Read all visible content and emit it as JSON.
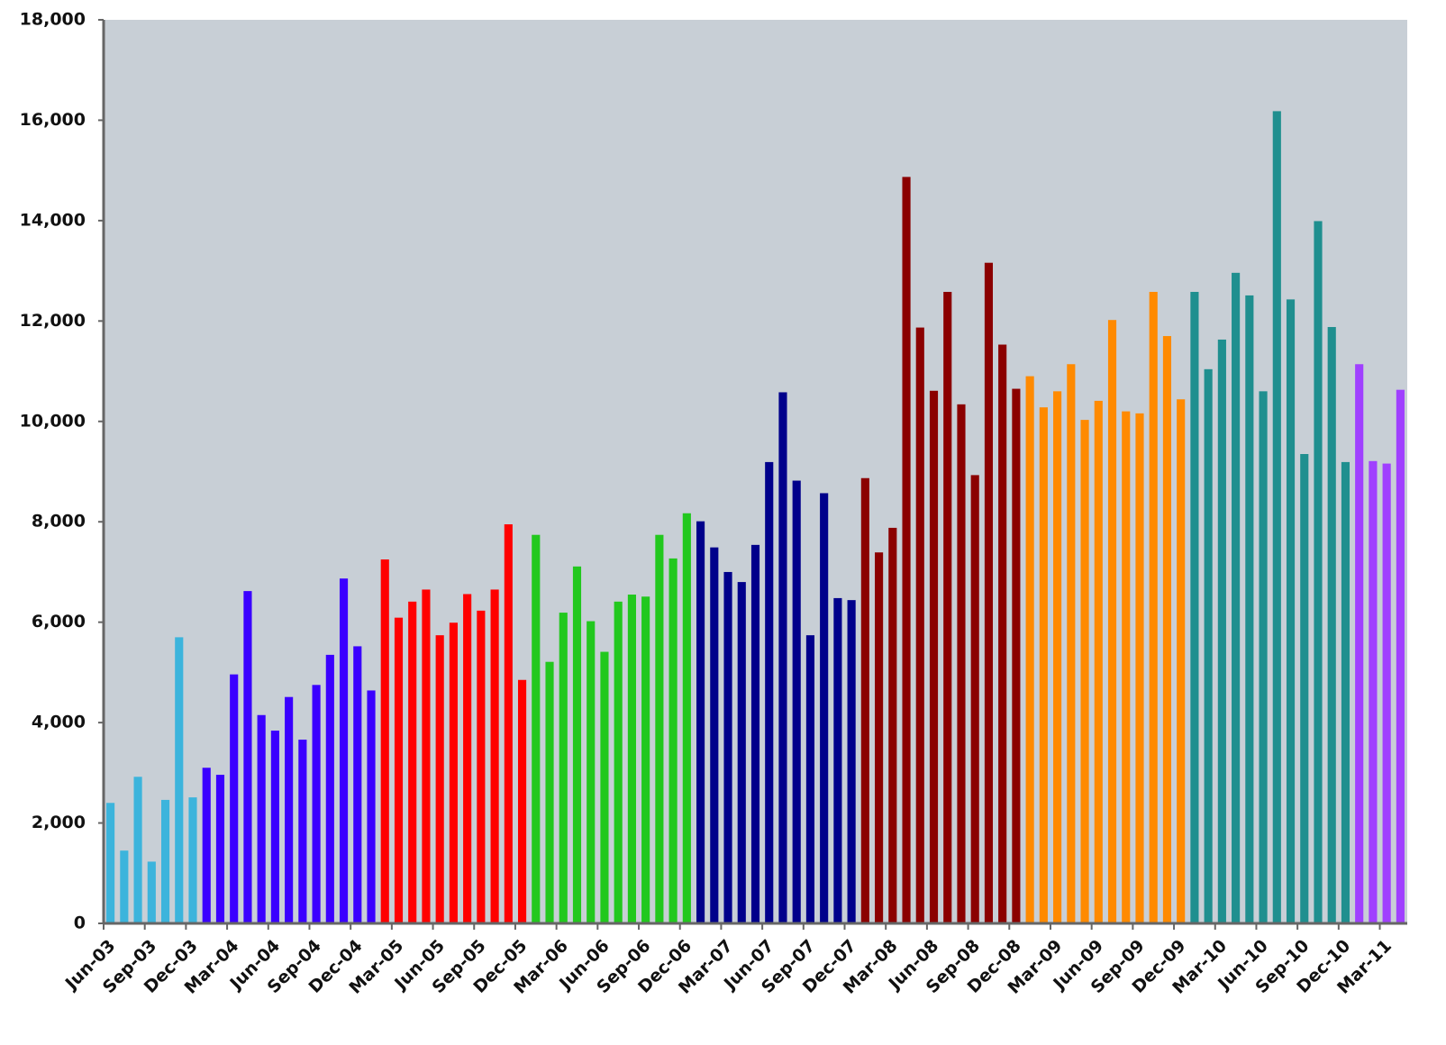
{
  "chart_data": {
    "type": "bar",
    "categories": [
      "Jun-03",
      null,
      null,
      "Sep-03",
      null,
      null,
      "Dec-03",
      null,
      null,
      "Mar-04",
      null,
      null,
      "Jun-04",
      null,
      null,
      "Sep-04",
      null,
      null,
      "Dec-04",
      null,
      null,
      "Mar-05",
      null,
      null,
      "Jun-05",
      null,
      null,
      "Sep-05",
      null,
      null,
      "Dec-05",
      null,
      null,
      "Mar-06",
      null,
      null,
      "Jun-06",
      null,
      null,
      "Sep-06",
      null,
      null,
      "Dec-06",
      null,
      null,
      "Mar-07",
      null,
      null,
      "Jun-07",
      null,
      null,
      "Sep-07",
      null,
      null,
      "Dec-07",
      null,
      null,
      "Mar-08",
      null,
      null,
      "Jun-08",
      null,
      null,
      "Sep-08",
      null,
      null,
      "Dec-08",
      null,
      null,
      "Mar-09",
      null,
      null,
      "Jun-09",
      null,
      null,
      "Sep-09",
      null,
      null,
      "Dec-09",
      null,
      null,
      "Mar-10",
      null,
      null,
      "Jun-10",
      null,
      null,
      "Sep-10",
      null,
      null,
      "Dec-10",
      null,
      null,
      "Mar-11",
      null
    ],
    "values": [
      2400,
      1450,
      2920,
      1230,
      2460,
      5700,
      2510,
      3100,
      2960,
      4960,
      6620,
      4150,
      3840,
      4510,
      3660,
      4750,
      5350,
      6870,
      5520,
      4640,
      7250,
      6090,
      6410,
      6650,
      5740,
      5990,
      6560,
      6230,
      6650,
      7950,
      4850,
      7740,
      5210,
      6190,
      7110,
      6020,
      5410,
      6410,
      6550,
      6510,
      7740,
      7270,
      8170,
      8010,
      7490,
      7000,
      6800,
      7540,
      9190,
      10580,
      8820,
      5740,
      8570,
      6480,
      6440,
      8870,
      7390,
      7880,
      14870,
      11870,
      10610,
      12580,
      10340,
      8930,
      13160,
      11530,
      10650,
      10900,
      10280,
      10600,
      11140,
      10030,
      10410,
      12020,
      10200,
      10160,
      12580,
      11700,
      10440,
      12580,
      11040,
      11630,
      12960,
      12510,
      10600,
      16180,
      12430,
      9350,
      13990,
      11880,
      9190,
      11140,
      9210,
      9160,
      10630
    ],
    "colors": [
      "#3cb4dc",
      "#3cb4dc",
      "#3cb4dc",
      "#3cb4dc",
      "#3cb4dc",
      "#3cb4dc",
      "#3cb4dc",
      "#3a00ff",
      "#3a00ff",
      "#3a00ff",
      "#3a00ff",
      "#3a00ff",
      "#3a00ff",
      "#3a00ff",
      "#3a00ff",
      "#3a00ff",
      "#3a00ff",
      "#3a00ff",
      "#3a00ff",
      "#3a00ff",
      "#ff0000",
      "#ff0000",
      "#ff0000",
      "#ff0000",
      "#ff0000",
      "#ff0000",
      "#ff0000",
      "#ff0000",
      "#ff0000",
      "#ff0000",
      "#ff0000",
      "#22c81e",
      "#22c81e",
      "#22c81e",
      "#22c81e",
      "#22c81e",
      "#22c81e",
      "#22c81e",
      "#22c81e",
      "#22c81e",
      "#22c81e",
      "#22c81e",
      "#22c81e",
      "#00008b",
      "#00008b",
      "#00008b",
      "#00008b",
      "#00008b",
      "#00008b",
      "#00008b",
      "#00008b",
      "#00008b",
      "#00008b",
      "#00008b",
      "#00008b",
      "#8b0000",
      "#8b0000",
      "#8b0000",
      "#8b0000",
      "#8b0000",
      "#8b0000",
      "#8b0000",
      "#8b0000",
      "#8b0000",
      "#8b0000",
      "#8b0000",
      "#8b0000",
      "#ff8a00",
      "#ff8a00",
      "#ff8a00",
      "#ff8a00",
      "#ff8a00",
      "#ff8a00",
      "#ff8a00",
      "#ff8a00",
      "#ff8a00",
      "#ff8a00",
      "#ff8a00",
      "#ff8a00",
      "#1f8f8f",
      "#1f8f8f",
      "#1f8f8f",
      "#1f8f8f",
      "#1f8f8f",
      "#1f8f8f",
      "#1f8f8f",
      "#1f8f8f",
      "#1f8f8f",
      "#1f8f8f",
      "#1f8f8f",
      "#1f8f8f",
      "#a040ff",
      "#a040ff",
      "#a040ff",
      "#a040ff"
    ],
    "ylim": [
      0,
      18000
    ],
    "yticks": [
      0,
      {
        "value": 2000,
        "label": "2,000"
      },
      {
        "value": 4000,
        "label": "4,000"
      },
      {
        "value": 6000,
        "label": "6,000"
      },
      {
        "value": 8000,
        "label": "8,000"
      },
      {
        "value": 10000,
        "label": "10,000"
      },
      {
        "value": 12000,
        "label": "12,000"
      },
      {
        "value": 14000,
        "label": "14,000"
      },
      {
        "value": 16000,
        "label": "16,000"
      },
      {
        "value": 18000,
        "label": "18,000"
      }
    ],
    "grid": false
  }
}
